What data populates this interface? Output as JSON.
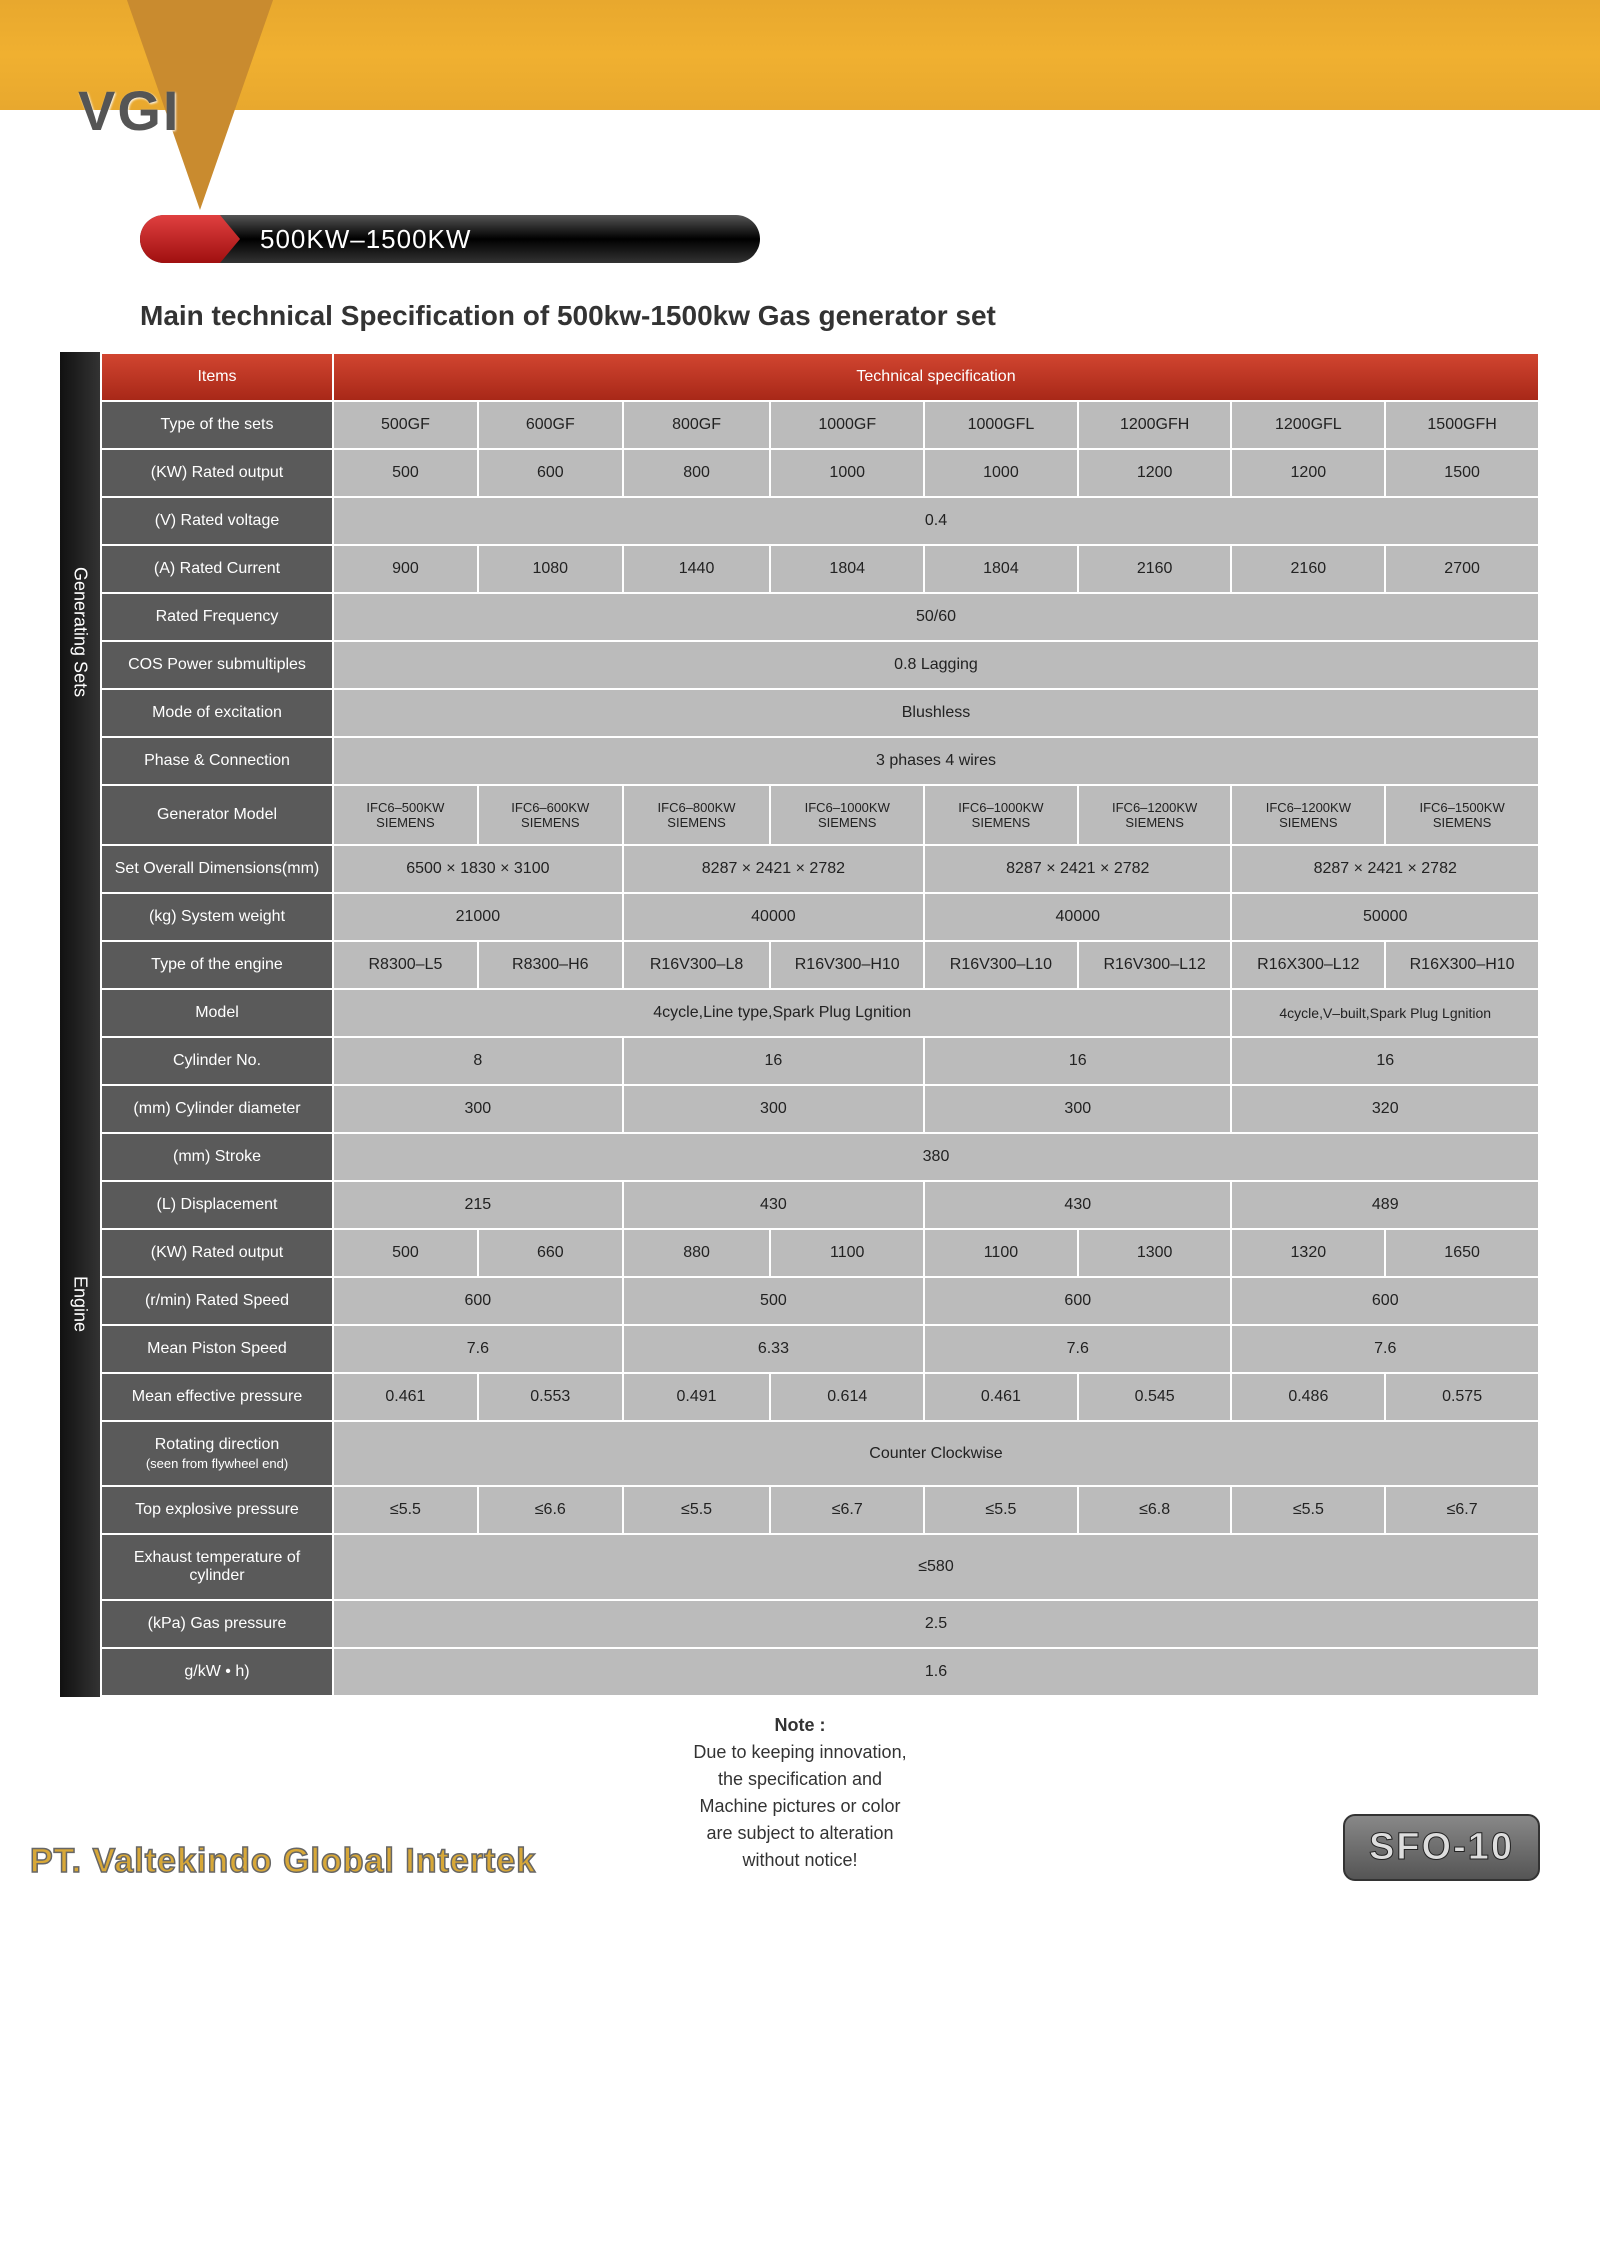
{
  "logo_text": "VGI",
  "title_pill": "500KW–1500KW",
  "subtitle": "Main technical Specification of 500kw-1500kw Gas generator set",
  "header": {
    "items": "Items",
    "tech": "Technical specification"
  },
  "side_labels": {
    "generating": "Generating Sets",
    "engine": "Engine"
  },
  "rows": [
    {
      "label": "Type of the sets",
      "cells": [
        "500GF",
        "600GF",
        "800GF",
        "1000GF",
        "1000GFL",
        "1200GFH",
        "1200GFL",
        "1500GFH"
      ]
    },
    {
      "label": "(KW) Rated output",
      "cells": [
        "500",
        "600",
        "800",
        "1000",
        "1000",
        "1200",
        "1200",
        "1500"
      ]
    },
    {
      "label": "(V) Rated voltage",
      "span": 8,
      "value": "0.4"
    },
    {
      "label": "(A) Rated Current",
      "cells": [
        "900",
        "1080",
        "1440",
        "1804",
        "1804",
        "2160",
        "2160",
        "2700"
      ]
    },
    {
      "label": "Rated Frequency",
      "span": 8,
      "value": "50/60"
    },
    {
      "label": "COS Power submultiples",
      "span": 8,
      "value": "0.8 Lagging"
    },
    {
      "label": "Mode of excitation",
      "span": 8,
      "value": "Blushless"
    },
    {
      "label": "Phase & Connection",
      "span": 8,
      "value": "3 phases 4 wires"
    },
    {
      "label": "Generator Model",
      "cells": [
        "IFC6–500KW SIEMENS",
        "IFC6–600KW SIEMENS",
        "IFC6–800KW SIEMENS",
        "IFC6–1000KW SIEMENS",
        "IFC6–1000KW SIEMENS",
        "IFC6–1200KW SIEMENS",
        "IFC6–1200KW SIEMENS",
        "IFC6–1500KW SIEMENS"
      ]
    },
    {
      "label": "Set Overall Dimensions(mm)",
      "spans": [
        {
          "cols": 2,
          "v": "6500 × 1830 × 3100"
        },
        {
          "cols": 2,
          "v": "8287 × 2421 × 2782"
        },
        {
          "cols": 2,
          "v": "8287 × 2421 × 2782"
        },
        {
          "cols": 2,
          "v": "8287 × 2421 × 2782"
        }
      ]
    },
    {
      "label": "(kg) System weight",
      "spans": [
        {
          "cols": 2,
          "v": "21000"
        },
        {
          "cols": 2,
          "v": "40000"
        },
        {
          "cols": 2,
          "v": "40000"
        },
        {
          "cols": 2,
          "v": "50000"
        }
      ]
    },
    {
      "label": "Type of the engine",
      "cells": [
        "R8300–L5",
        "R8300–H6",
        "R16V300–L8",
        "R16V300–H10",
        "R16V300–L10",
        "R16V300–L12",
        "R16X300–L12",
        "R16X300–H10"
      ]
    },
    {
      "label": "Model",
      "spans": [
        {
          "cols": 6,
          "v": "4cycle,Line type,Spark Plug Lgnition"
        },
        {
          "cols": 2,
          "v": "4cycle,V–built,Spark Plug Lgnition"
        }
      ]
    },
    {
      "label": "Cylinder No.",
      "spans": [
        {
          "cols": 2,
          "v": "8"
        },
        {
          "cols": 2,
          "v": "16"
        },
        {
          "cols": 2,
          "v": "16"
        },
        {
          "cols": 2,
          "v": "16"
        }
      ]
    },
    {
      "label": "(mm) Cylinder diameter",
      "spans": [
        {
          "cols": 2,
          "v": "300"
        },
        {
          "cols": 2,
          "v": "300"
        },
        {
          "cols": 2,
          "v": "300"
        },
        {
          "cols": 2,
          "v": "320"
        }
      ]
    },
    {
      "label": "(mm) Stroke",
      "span": 8,
      "value": "380"
    },
    {
      "label": "(L) Displacement",
      "spans": [
        {
          "cols": 2,
          "v": "215"
        },
        {
          "cols": 2,
          "v": "430"
        },
        {
          "cols": 2,
          "v": "430"
        },
        {
          "cols": 2,
          "v": "489"
        }
      ]
    },
    {
      "label": "(KW) Rated output",
      "cells": [
        "500",
        "660",
        "880",
        "1100",
        "1100",
        "1300",
        "1320",
        "1650"
      ]
    },
    {
      "label": "(r/min) Rated Speed",
      "spans": [
        {
          "cols": 2,
          "v": "600"
        },
        {
          "cols": 2,
          "v": "500"
        },
        {
          "cols": 2,
          "v": "600"
        },
        {
          "cols": 2,
          "v": "600"
        }
      ]
    },
    {
      "label": "Mean Piston Speed",
      "spans": [
        {
          "cols": 2,
          "v": "7.6"
        },
        {
          "cols": 2,
          "v": "6.33"
        },
        {
          "cols": 2,
          "v": "7.6"
        },
        {
          "cols": 2,
          "v": "7.6"
        }
      ]
    },
    {
      "label": "Mean effective pressure",
      "cells": [
        "0.461",
        "0.553",
        "0.491",
        "0.614",
        "0.461",
        "0.545",
        "0.486",
        "0.575"
      ]
    },
    {
      "label": "Rotating direction",
      "sub": "(seen from flywheel end)",
      "span": 8,
      "value": "Counter Clockwise"
    },
    {
      "label": "Top explosive pressure",
      "cells": [
        "≤5.5",
        "≤6.6",
        "≤5.5",
        "≤6.7",
        "≤5.5",
        "≤6.8",
        "≤5.5",
        "≤6.7"
      ]
    },
    {
      "label": "Exhaust temperature of cylinder",
      "span": 8,
      "value": "≤580"
    },
    {
      "label": "(kPa) Gas pressure",
      "span": 8,
      "value": "2.5"
    },
    {
      "label": "g/kW • h)",
      "span": 8,
      "value": "1.6"
    }
  ],
  "note": {
    "title": "Note :",
    "lines": [
      "Due to keeping innovation,",
      "the specification and",
      "Machine pictures or color",
      "are subject to alteration",
      "without notice!"
    ]
  },
  "company": "PT. Valtekindo Global Intertek",
  "page_code": "SFO-10"
}
